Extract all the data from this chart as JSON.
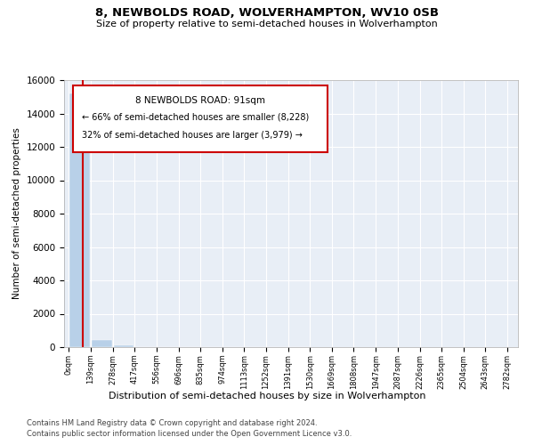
{
  "title1": "8, NEWBOLDS ROAD, WOLVERHAMPTON, WV10 0SB",
  "title2": "Size of property relative to semi-detached houses in Wolverhampton",
  "xlabel": "Distribution of semi-detached houses by size in Wolverhampton",
  "ylabel": "Number of semi-detached properties",
  "footer1": "Contains HM Land Registry data © Crown copyright and database right 2024.",
  "footer2": "Contains public sector information licensed under the Open Government Licence v3.0.",
  "annotation_title": "8 NEWBOLDS ROAD: 91sqm",
  "annotation_line1": "← 66% of semi-detached houses are smaller (8,228)",
  "annotation_line2": "32% of semi-detached houses are larger (3,979) →",
  "property_size": 91,
  "bar_edges": [
    0,
    139,
    278,
    417,
    556,
    696,
    835,
    974,
    1113,
    1252,
    1391,
    1530,
    1669,
    1808,
    1947,
    2087,
    2226,
    2365,
    2504,
    2643,
    2782
  ],
  "bar_values": [
    15200,
    420,
    90,
    15,
    8,
    4,
    2,
    1,
    1,
    1,
    1,
    0,
    0,
    0,
    0,
    0,
    0,
    0,
    0,
    0
  ],
  "bar_color": "#b8d0e8",
  "vline_color": "#cc0000",
  "vline_x": 91,
  "annotation_box_color": "#cc0000",
  "background_color": "#e8eef6",
  "ylim": [
    0,
    16000
  ],
  "yticks": [
    0,
    2000,
    4000,
    6000,
    8000,
    10000,
    12000,
    14000,
    16000
  ],
  "tick_labels": [
    "0sqm",
    "139sqm",
    "278sqm",
    "417sqm",
    "556sqm",
    "696sqm",
    "835sqm",
    "974sqm",
    "1113sqm",
    "1252sqm",
    "1391sqm",
    "1530sqm",
    "1669sqm",
    "1808sqm",
    "1947sqm",
    "2087sqm",
    "2226sqm",
    "2365sqm",
    "2504sqm",
    "2643sqm",
    "2782sqm"
  ]
}
